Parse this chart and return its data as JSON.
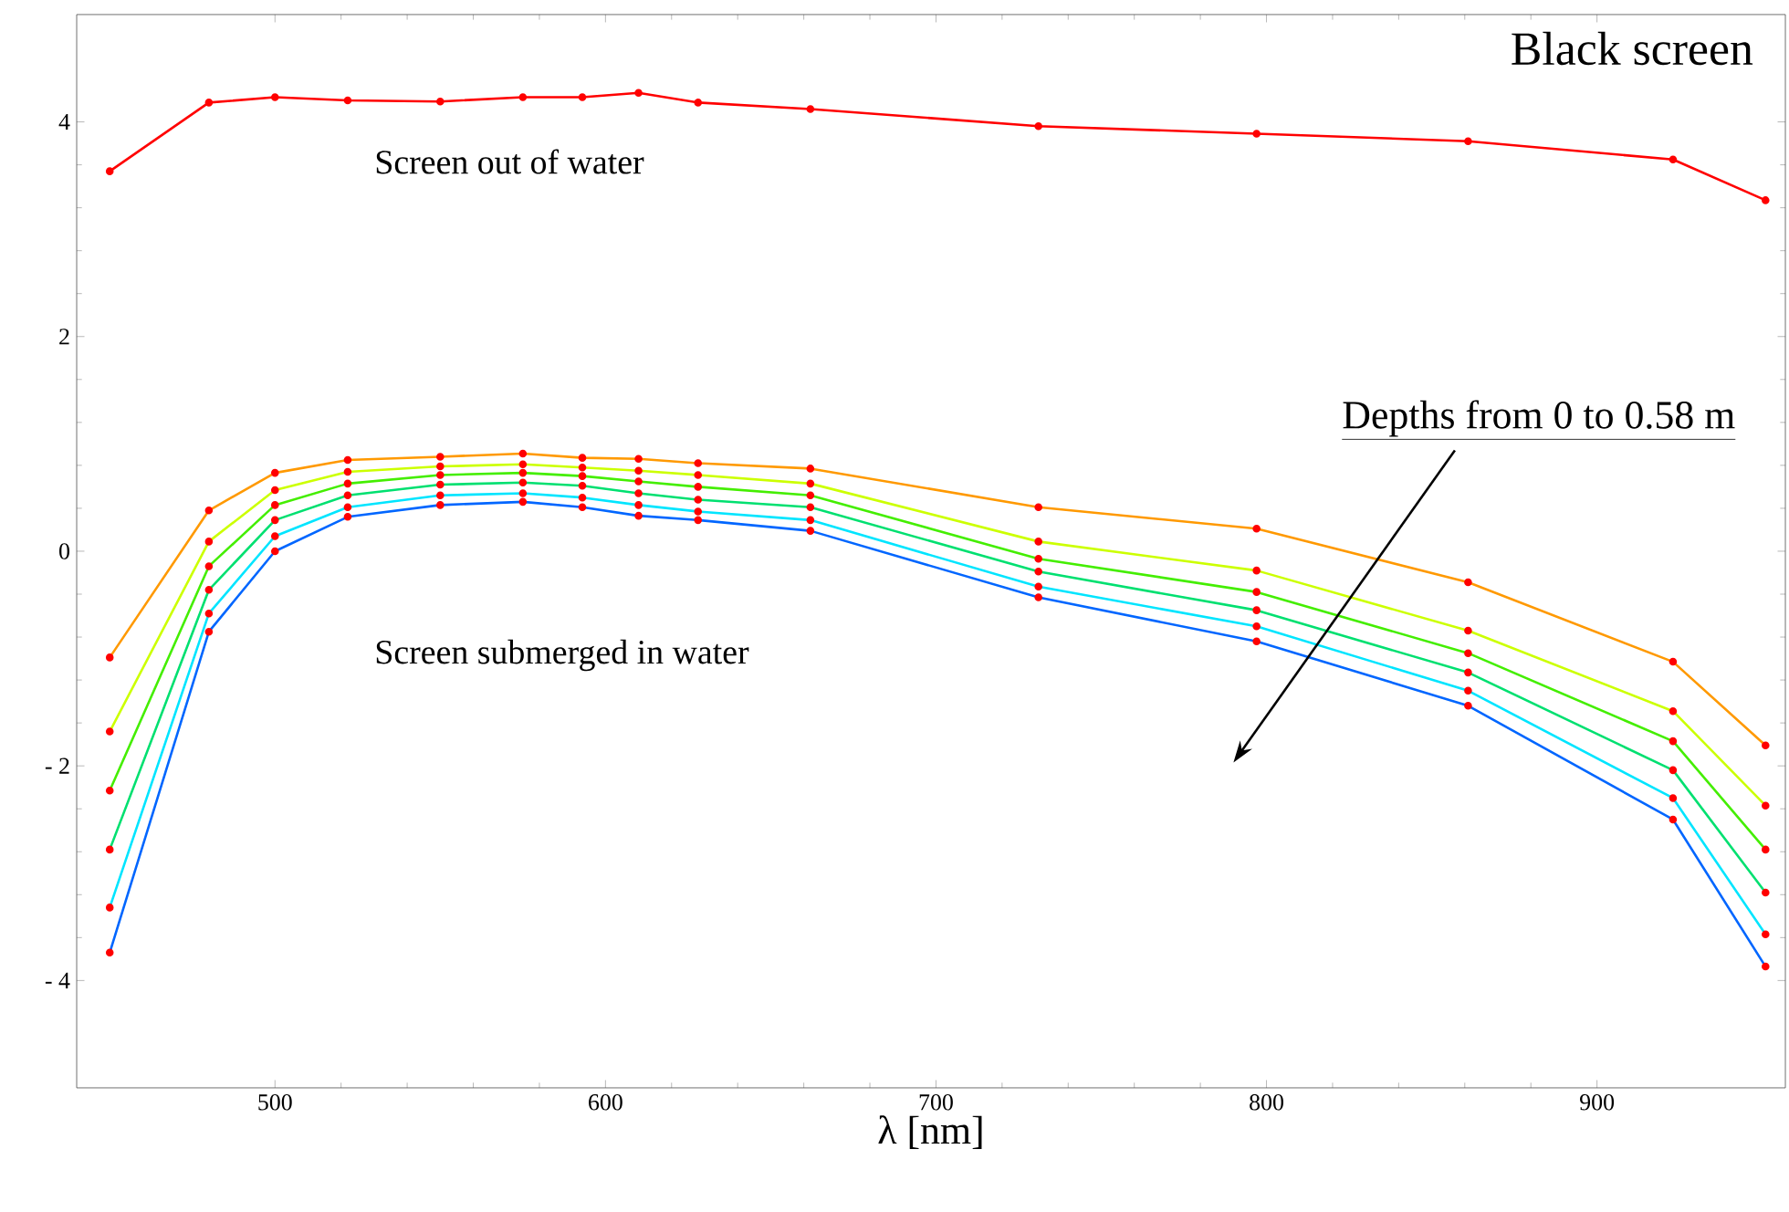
{
  "chart_data": {
    "type": "line",
    "title": "Black screen",
    "xlabel": "λ [nm]",
    "x": [
      450,
      480,
      500,
      522,
      550,
      575,
      593,
      610,
      628,
      662,
      731,
      797,
      861,
      923,
      951
    ],
    "series": [
      {
        "color": "#ff0000",
        "values": [
          3.54,
          4.18,
          4.23,
          4.2,
          4.19,
          4.23,
          4.23,
          4.27,
          4.18,
          4.12,
          3.96,
          3.89,
          3.82,
          3.65,
          3.27
        ]
      },
      {
        "color": "#ff9900",
        "values": [
          -0.99,
          0.38,
          0.73,
          0.85,
          0.88,
          0.91,
          0.87,
          0.86,
          0.82,
          0.77,
          0.41,
          0.21,
          -0.29,
          -1.03,
          -1.81
        ]
      },
      {
        "color": "#ccff00",
        "values": [
          -1.68,
          0.09,
          0.57,
          0.74,
          0.79,
          0.81,
          0.78,
          0.75,
          0.71,
          0.63,
          0.09,
          -0.18,
          -0.74,
          -1.49,
          -2.37
        ]
      },
      {
        "color": "#44ee00",
        "values": [
          -2.23,
          -0.14,
          0.43,
          0.63,
          0.71,
          0.73,
          0.7,
          0.65,
          0.6,
          0.52,
          -0.07,
          -0.38,
          -0.95,
          -1.77,
          -2.78
        ]
      },
      {
        "color": "#00e070",
        "values": [
          -2.78,
          -0.36,
          0.29,
          0.52,
          0.62,
          0.64,
          0.61,
          0.54,
          0.48,
          0.41,
          -0.19,
          -0.55,
          -1.13,
          -2.04,
          -3.18
        ]
      },
      {
        "color": "#00e5ff",
        "values": [
          -3.32,
          -0.58,
          0.14,
          0.41,
          0.52,
          0.54,
          0.5,
          0.43,
          0.37,
          0.29,
          -0.33,
          -0.7,
          -1.3,
          -2.3,
          -3.57
        ]
      },
      {
        "color": "#0066ff",
        "values": [
          -3.74,
          -0.75,
          0.0,
          0.32,
          0.43,
          0.46,
          0.41,
          0.33,
          0.29,
          0.19,
          -0.43,
          -0.84,
          -1.44,
          -2.5,
          -3.87
        ]
      }
    ],
    "annotations": [
      "Screen out of water",
      "Screen submerged in water",
      "Depths from 0 to 0.58 m"
    ],
    "xlim": [
      440,
      957
    ],
    "ylim": [
      -5,
      5
    ],
    "xticks": [
      500,
      600,
      700,
      800,
      900
    ],
    "yticks": [
      {
        "value": -4,
        "label": "- 4"
      },
      {
        "value": -2,
        "label": "- 2"
      },
      0,
      2,
      4
    ],
    "marker": "circle"
  }
}
